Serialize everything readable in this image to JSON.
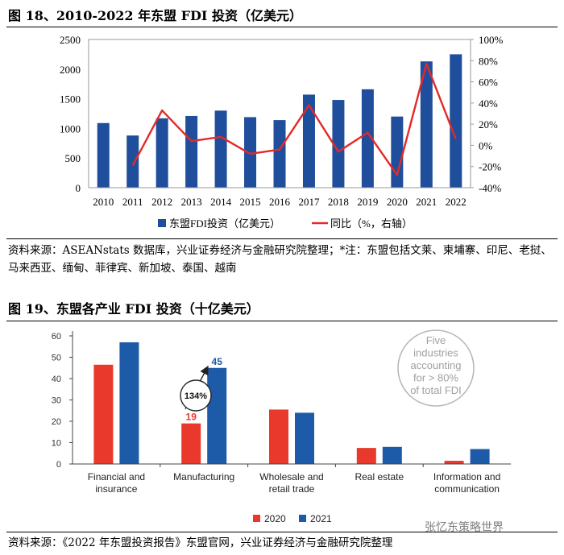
{
  "figure18": {
    "title": "图 18、2010-2022 年东盟 FDI 投资（亿美元）",
    "source": "资料来源：ASEANstats 数据库，兴业证券经济与金融研究院整理；*注：东盟包括文莱、柬埔寨、印尼、老挝、马来西亚、缅甸、菲律宾、新加坡、泰国、越南"
  },
  "figure19": {
    "title": "图 19、东盟各产业 FDI 投资（十亿美元）",
    "source": "资料来源：《2022 年东盟投资报告》东盟官网，兴业证券经济与金融研究院整理",
    "bubble_text": [
      "Five",
      "industries",
      "accounting",
      "for > 80%",
      "of total FDI"
    ],
    "growth_label": "134%"
  },
  "watermark": "张忆东策略世界",
  "colors": {
    "navy": "#1f4e9c",
    "red_line": "#e32a2a",
    "red_bar": "#e8392c",
    "blue_bar": "#1d5aa8"
  },
  "chart_data": [
    {
      "type": "bar",
      "categories": [
        "2010",
        "2011",
        "2012",
        "2013",
        "2014",
        "2015",
        "2016",
        "2017",
        "2018",
        "2019",
        "2020",
        "2021",
        "2022"
      ],
      "series": [
        {
          "name": "东盟FDI投资（亿美元）",
          "type": "bar",
          "axis": "left",
          "values": [
            1090,
            880,
            1170,
            1210,
            1300,
            1190,
            1140,
            1570,
            1480,
            1660,
            1200,
            2130,
            2250
          ]
        },
        {
          "name": "同比（%，右轴）",
          "type": "line",
          "axis": "right",
          "values": [
            null,
            -19,
            33,
            4,
            8,
            -8,
            -4,
            38,
            -6,
            12,
            -28,
            77,
            6
          ]
        }
      ],
      "ylim_left": [
        0,
        2500
      ],
      "yticks_left": [
        "0",
        "500",
        "1000",
        "1500",
        "2000",
        "2500"
      ],
      "ylim_right": [
        -40,
        100
      ],
      "yticks_right": [
        "-40%",
        "-20%",
        "0%",
        "20%",
        "40%",
        "60%",
        "80%",
        "100%"
      ],
      "legend_position": "bottom"
    },
    {
      "type": "bar",
      "categories": [
        [
          "Financial and",
          "insurance"
        ],
        [
          "Manufacturing"
        ],
        [
          "Wholesale and",
          "retail trade"
        ],
        [
          "Real estate"
        ],
        [
          "Information and",
          "communication"
        ]
      ],
      "series": [
        {
          "name": "2020",
          "values": [
            46.5,
            19,
            25.5,
            7.5,
            1.5
          ]
        },
        {
          "name": "2021",
          "values": [
            57,
            45,
            24,
            8,
            7
          ]
        }
      ],
      "data_labels": {
        "manufacturing_2020": "19",
        "manufacturing_2021": "45"
      },
      "ylim": [
        0,
        60
      ],
      "yticks": [
        "0",
        "10",
        "20",
        "30",
        "40",
        "50",
        "60"
      ],
      "legend_position": "bottom"
    }
  ]
}
